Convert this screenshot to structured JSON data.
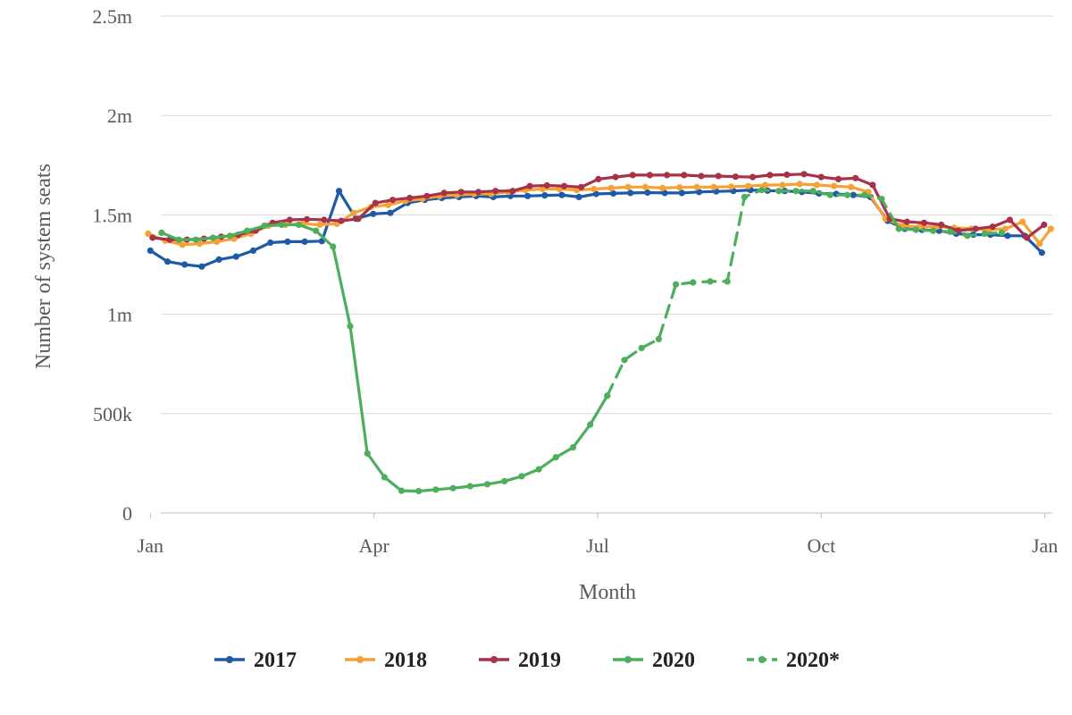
{
  "chart_data": {
    "type": "line",
    "title": "",
    "xlabel": "Month",
    "ylabel": "Number of system seats",
    "x_ticks": [
      {
        "label": "Jan",
        "month": 1.0
      },
      {
        "label": "Apr",
        "month": 4.0
      },
      {
        "label": "Jul",
        "month": 7.0
      },
      {
        "label": "Oct",
        "month": 10.0
      },
      {
        "label": "Jan",
        "month": 13.0
      }
    ],
    "x_range": [
      0.9,
      13.1
    ],
    "y_ticks": [
      {
        "label": "0",
        "value": 0
      },
      {
        "label": "500k",
        "value": 500000
      },
      {
        "label": "1m",
        "value": 1000000
      },
      {
        "label": "1.5m",
        "value": 1500000
      },
      {
        "label": "2m",
        "value": 2000000
      },
      {
        "label": "2.5m",
        "value": 2500000
      }
    ],
    "ylim": [
      0,
      2500000
    ],
    "grid": "horizontal",
    "legend_position": "bottom",
    "series": [
      {
        "name": "2017",
        "color": "#1f5aa6",
        "dash": false,
        "points": [
          [
            1.0,
            1320000
          ],
          [
            1.23,
            1265000
          ],
          [
            1.46,
            1250000
          ],
          [
            1.69,
            1240000
          ],
          [
            1.92,
            1275000
          ],
          [
            2.15,
            1290000
          ],
          [
            2.38,
            1320000
          ],
          [
            2.61,
            1360000
          ],
          [
            2.84,
            1365000
          ],
          [
            3.07,
            1365000
          ],
          [
            3.3,
            1368000
          ],
          [
            3.53,
            1620000
          ],
          [
            3.76,
            1480000
          ],
          [
            3.99,
            1505000
          ],
          [
            4.22,
            1510000
          ],
          [
            4.45,
            1560000
          ],
          [
            4.68,
            1575000
          ],
          [
            4.91,
            1585000
          ],
          [
            5.14,
            1590000
          ],
          [
            5.37,
            1595000
          ],
          [
            5.6,
            1590000
          ],
          [
            5.83,
            1595000
          ],
          [
            6.06,
            1595000
          ],
          [
            6.29,
            1598000
          ],
          [
            6.52,
            1600000
          ],
          [
            6.75,
            1590000
          ],
          [
            6.98,
            1605000
          ],
          [
            7.21,
            1608000
          ],
          [
            7.44,
            1610000
          ],
          [
            7.67,
            1612000
          ],
          [
            7.9,
            1610000
          ],
          [
            8.13,
            1610000
          ],
          [
            8.36,
            1615000
          ],
          [
            8.59,
            1618000
          ],
          [
            8.82,
            1620000
          ],
          [
            9.05,
            1625000
          ],
          [
            9.28,
            1622000
          ],
          [
            9.51,
            1620000
          ],
          [
            9.74,
            1615000
          ],
          [
            9.97,
            1608000
          ],
          [
            10.2,
            1605000
          ],
          [
            10.43,
            1600000
          ],
          [
            10.66,
            1590000
          ],
          [
            10.89,
            1470000
          ],
          [
            11.12,
            1430000
          ],
          [
            11.35,
            1425000
          ],
          [
            11.58,
            1420000
          ],
          [
            11.81,
            1405000
          ],
          [
            12.04,
            1400000
          ],
          [
            12.27,
            1400000
          ],
          [
            12.5,
            1395000
          ],
          [
            12.73,
            1395000
          ],
          [
            12.96,
            1310000
          ]
        ]
      },
      {
        "name": "2018",
        "color": "#f5a235",
        "dash": false,
        "points": [
          [
            0.97,
            1405000
          ],
          [
            1.2,
            1370000
          ],
          [
            1.43,
            1350000
          ],
          [
            1.66,
            1355000
          ],
          [
            1.89,
            1365000
          ],
          [
            2.12,
            1380000
          ],
          [
            2.35,
            1405000
          ],
          [
            2.58,
            1445000
          ],
          [
            2.81,
            1450000
          ],
          [
            3.04,
            1455000
          ],
          [
            3.27,
            1450000
          ],
          [
            3.5,
            1455000
          ],
          [
            3.73,
            1510000
          ],
          [
            3.96,
            1540000
          ],
          [
            4.19,
            1550000
          ],
          [
            4.42,
            1570000
          ],
          [
            4.65,
            1580000
          ],
          [
            4.88,
            1595000
          ],
          [
            5.11,
            1600000
          ],
          [
            5.34,
            1605000
          ],
          [
            5.57,
            1605000
          ],
          [
            5.8,
            1615000
          ],
          [
            6.03,
            1625000
          ],
          [
            6.26,
            1630000
          ],
          [
            6.49,
            1630000
          ],
          [
            6.72,
            1625000
          ],
          [
            6.95,
            1630000
          ],
          [
            7.18,
            1635000
          ],
          [
            7.41,
            1640000
          ],
          [
            7.64,
            1640000
          ],
          [
            7.87,
            1635000
          ],
          [
            8.1,
            1638000
          ],
          [
            8.33,
            1640000
          ],
          [
            8.56,
            1640000
          ],
          [
            8.79,
            1642000
          ],
          [
            9.02,
            1645000
          ],
          [
            9.25,
            1650000
          ],
          [
            9.48,
            1650000
          ],
          [
            9.71,
            1655000
          ],
          [
            9.94,
            1650000
          ],
          [
            10.17,
            1645000
          ],
          [
            10.4,
            1640000
          ],
          [
            10.63,
            1615000
          ],
          [
            10.86,
            1480000
          ],
          [
            11.09,
            1445000
          ],
          [
            11.32,
            1440000
          ],
          [
            11.55,
            1440000
          ],
          [
            11.78,
            1435000
          ],
          [
            12.01,
            1430000
          ],
          [
            12.24,
            1425000
          ],
          [
            12.47,
            1430000
          ],
          [
            12.7,
            1465000
          ],
          [
            12.93,
            1355000
          ],
          [
            13.08,
            1430000
          ]
        ]
      },
      {
        "name": "2019",
        "color": "#a8324a",
        "dash": false,
        "points": [
          [
            1.03,
            1385000
          ],
          [
            1.26,
            1375000
          ],
          [
            1.49,
            1375000
          ],
          [
            1.72,
            1380000
          ],
          [
            1.95,
            1390000
          ],
          [
            2.18,
            1400000
          ],
          [
            2.41,
            1420000
          ],
          [
            2.64,
            1460000
          ],
          [
            2.87,
            1475000
          ],
          [
            3.1,
            1478000
          ],
          [
            3.33,
            1475000
          ],
          [
            3.56,
            1470000
          ],
          [
            3.79,
            1480000
          ],
          [
            4.02,
            1560000
          ],
          [
            4.25,
            1575000
          ],
          [
            4.48,
            1585000
          ],
          [
            4.71,
            1595000
          ],
          [
            4.94,
            1610000
          ],
          [
            5.17,
            1615000
          ],
          [
            5.4,
            1615000
          ],
          [
            5.63,
            1620000
          ],
          [
            5.86,
            1620000
          ],
          [
            6.09,
            1645000
          ],
          [
            6.32,
            1648000
          ],
          [
            6.55,
            1645000
          ],
          [
            6.78,
            1640000
          ],
          [
            7.01,
            1680000
          ],
          [
            7.24,
            1690000
          ],
          [
            7.47,
            1700000
          ],
          [
            7.7,
            1700000
          ],
          [
            7.93,
            1700000
          ],
          [
            8.16,
            1700000
          ],
          [
            8.39,
            1695000
          ],
          [
            8.62,
            1695000
          ],
          [
            8.85,
            1692000
          ],
          [
            9.08,
            1690000
          ],
          [
            9.31,
            1700000
          ],
          [
            9.54,
            1702000
          ],
          [
            9.77,
            1705000
          ],
          [
            10.0,
            1690000
          ],
          [
            10.23,
            1680000
          ],
          [
            10.46,
            1685000
          ],
          [
            10.69,
            1650000
          ],
          [
            10.92,
            1480000
          ],
          [
            11.15,
            1465000
          ],
          [
            11.38,
            1460000
          ],
          [
            11.61,
            1450000
          ],
          [
            11.84,
            1420000
          ],
          [
            12.07,
            1430000
          ],
          [
            12.3,
            1440000
          ],
          [
            12.53,
            1475000
          ],
          [
            12.76,
            1385000
          ],
          [
            12.99,
            1450000
          ]
        ]
      },
      {
        "name": "2020",
        "color": "#4dae5c",
        "dash": false,
        "points": [
          [
            1.15,
            1410000
          ],
          [
            1.38,
            1375000
          ],
          [
            1.61,
            1375000
          ],
          [
            1.84,
            1385000
          ],
          [
            2.07,
            1395000
          ],
          [
            2.3,
            1420000
          ],
          [
            2.53,
            1445000
          ],
          [
            2.76,
            1450000
          ],
          [
            2.99,
            1450000
          ],
          [
            3.22,
            1420000
          ],
          [
            3.45,
            1340000
          ],
          [
            3.68,
            940000
          ],
          [
            3.91,
            300000
          ],
          [
            4.14,
            180000
          ],
          [
            4.37,
            112000
          ],
          [
            4.6,
            110000
          ],
          [
            4.83,
            118000
          ],
          [
            5.06,
            125000
          ],
          [
            5.29,
            135000
          ],
          [
            5.52,
            145000
          ],
          [
            5.75,
            160000
          ],
          [
            5.98,
            185000
          ],
          [
            6.21,
            220000
          ],
          [
            6.44,
            280000
          ],
          [
            6.67,
            330000
          ],
          [
            6.9,
            445000
          ],
          [
            7.13,
            590000
          ]
        ]
      },
      {
        "name": "2020*",
        "color": "#4dae5c",
        "dash": true,
        "points": [
          [
            7.13,
            590000
          ],
          [
            7.36,
            770000
          ],
          [
            7.59,
            830000
          ],
          [
            7.82,
            875000
          ],
          [
            8.05,
            1150000
          ],
          [
            8.28,
            1160000
          ],
          [
            8.51,
            1165000
          ],
          [
            8.74,
            1165000
          ],
          [
            8.97,
            1590000
          ],
          [
            9.2,
            1625000
          ],
          [
            9.43,
            1620000
          ],
          [
            9.66,
            1620000
          ],
          [
            9.89,
            1620000
          ],
          [
            10.12,
            1600000
          ],
          [
            10.35,
            1600000
          ],
          [
            10.58,
            1600000
          ],
          [
            10.81,
            1580000
          ],
          [
            11.04,
            1430000
          ],
          [
            11.27,
            1425000
          ],
          [
            11.5,
            1420000
          ],
          [
            11.73,
            1415000
          ],
          [
            11.96,
            1395000
          ],
          [
            12.19,
            1405000
          ],
          [
            12.42,
            1410000
          ]
        ]
      }
    ]
  }
}
